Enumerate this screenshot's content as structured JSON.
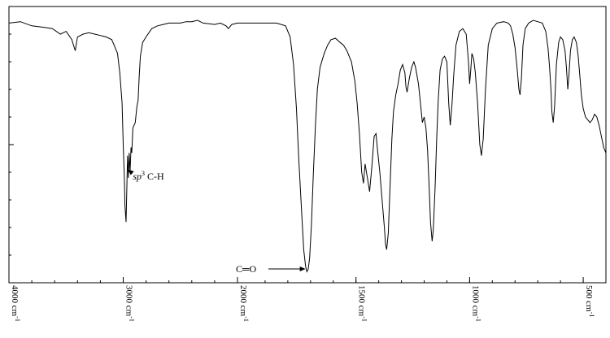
{
  "chart_data": {
    "type": "line",
    "xlim": [
      4000,
      400
    ],
    "ylim": [
      0,
      100
    ],
    "grid": false,
    "legend": "none",
    "line_color": "#000000",
    "x_ticks": [
      {
        "value": 4000,
        "label": "4000 cm",
        "sup": "-1"
      },
      {
        "value": 3000,
        "label": "3000 cm",
        "sup": "-1"
      },
      {
        "value": 2000,
        "label": "2000 cm",
        "sup": "-1"
      },
      {
        "value": 1500,
        "label": "1500 cm",
        "sup": "-1"
      },
      {
        "value": 1000,
        "label": "1000 cm",
        "sup": "-1"
      },
      {
        "value": 500,
        "label": "500 cm",
        "sup": "-1"
      }
    ],
    "annotations": [
      {
        "italic": "sp",
        "sup": "3",
        "text": " C-H",
        "x": 2930,
        "y": 40
      },
      {
        "italic": "",
        "sup": "",
        "text": "C═O",
        "x": 1715,
        "y": 5
      }
    ],
    "points": [
      [
        4000,
        94
      ],
      [
        3900,
        94.5
      ],
      [
        3800,
        93
      ],
      [
        3700,
        92.5
      ],
      [
        3620,
        92
      ],
      [
        3550,
        90
      ],
      [
        3500,
        91
      ],
      [
        3450,
        88
      ],
      [
        3420,
        84
      ],
      [
        3400,
        89
      ],
      [
        3350,
        90
      ],
      [
        3300,
        90.5
      ],
      [
        3250,
        90
      ],
      [
        3200,
        89.5
      ],
      [
        3150,
        89
      ],
      [
        3100,
        88
      ],
      [
        3080,
        86
      ],
      [
        3050,
        83
      ],
      [
        3030,
        76
      ],
      [
        3010,
        65
      ],
      [
        3000,
        50
      ],
      [
        2990,
        38
      ],
      [
        2985,
        28
      ],
      [
        2975,
        22
      ],
      [
        2968,
        35
      ],
      [
        2962,
        46
      ],
      [
        2955,
        38
      ],
      [
        2948,
        47
      ],
      [
        2940,
        40
      ],
      [
        2932,
        49
      ],
      [
        2925,
        47
      ],
      [
        2915,
        56
      ],
      [
        2905,
        57
      ],
      [
        2895,
        58
      ],
      [
        2880,
        64
      ],
      [
        2870,
        66
      ],
      [
        2860,
        75
      ],
      [
        2850,
        82
      ],
      [
        2830,
        87
      ],
      [
        2800,
        89
      ],
      [
        2750,
        92
      ],
      [
        2700,
        93
      ],
      [
        2650,
        93.5
      ],
      [
        2600,
        94
      ],
      [
        2550,
        94
      ],
      [
        2500,
        94
      ],
      [
        2450,
        94.5
      ],
      [
        2400,
        94.5
      ],
      [
        2350,
        95
      ],
      [
        2300,
        94
      ],
      [
        2200,
        93.5
      ],
      [
        2150,
        94
      ],
      [
        2100,
        93
      ],
      [
        2080,
        92
      ],
      [
        2050,
        93.5
      ],
      [
        2000,
        94
      ],
      [
        1950,
        94
      ],
      [
        1900,
        94
      ],
      [
        1850,
        94
      ],
      [
        1810,
        93
      ],
      [
        1790,
        89
      ],
      [
        1775,
        79
      ],
      [
        1762,
        63
      ],
      [
        1752,
        45
      ],
      [
        1740,
        27
      ],
      [
        1730,
        12
      ],
      [
        1722,
        6
      ],
      [
        1716,
        4
      ],
      [
        1710,
        5
      ],
      [
        1704,
        9
      ],
      [
        1696,
        21
      ],
      [
        1688,
        39
      ],
      [
        1678,
        58
      ],
      [
        1670,
        70
      ],
      [
        1658,
        78
      ],
      [
        1640,
        83
      ],
      [
        1625,
        86
      ],
      [
        1610,
        88
      ],
      [
        1590,
        88.5
      ],
      [
        1570,
        87
      ],
      [
        1555,
        86
      ],
      [
        1540,
        84
      ],
      [
        1520,
        80
      ],
      [
        1505,
        73
      ],
      [
        1495,
        65
      ],
      [
        1485,
        54
      ],
      [
        1475,
        40
      ],
      [
        1467,
        36
      ],
      [
        1460,
        43
      ],
      [
        1450,
        38
      ],
      [
        1440,
        33
      ],
      [
        1430,
        42
      ],
      [
        1420,
        53
      ],
      [
        1412,
        54
      ],
      [
        1405,
        48
      ],
      [
        1395,
        40
      ],
      [
        1385,
        30
      ],
      [
        1375,
        20
      ],
      [
        1370,
        14
      ],
      [
        1365,
        12
      ],
      [
        1358,
        18
      ],
      [
        1350,
        35
      ],
      [
        1342,
        52
      ],
      [
        1335,
        62
      ],
      [
        1325,
        68
      ],
      [
        1315,
        72
      ],
      [
        1305,
        77
      ],
      [
        1295,
        79
      ],
      [
        1285,
        76
      ],
      [
        1280,
        71
      ],
      [
        1275,
        69
      ],
      [
        1265,
        74
      ],
      [
        1255,
        78
      ],
      [
        1245,
        80
      ],
      [
        1238,
        78
      ],
      [
        1225,
        72
      ],
      [
        1215,
        64
      ],
      [
        1208,
        58
      ],
      [
        1200,
        60
      ],
      [
        1192,
        56
      ],
      [
        1185,
        48
      ],
      [
        1178,
        35
      ],
      [
        1172,
        22
      ],
      [
        1165,
        15
      ],
      [
        1160,
        19
      ],
      [
        1152,
        34
      ],
      [
        1145,
        52
      ],
      [
        1138,
        66
      ],
      [
        1130,
        77
      ],
      [
        1120,
        81
      ],
      [
        1110,
        82
      ],
      [
        1100,
        80
      ],
      [
        1092,
        65
      ],
      [
        1085,
        57
      ],
      [
        1078,
        64
      ],
      [
        1070,
        75
      ],
      [
        1060,
        86
      ],
      [
        1045,
        91
      ],
      [
        1030,
        92
      ],
      [
        1015,
        90
      ],
      [
        1005,
        80
      ],
      [
        1000,
        72
      ],
      [
        995,
        77
      ],
      [
        990,
        83
      ],
      [
        982,
        81
      ],
      [
        975,
        76
      ],
      [
        965,
        65
      ],
      [
        955,
        50
      ],
      [
        948,
        46
      ],
      [
        940,
        52
      ],
      [
        930,
        70
      ],
      [
        918,
        86
      ],
      [
        900,
        92
      ],
      [
        880,
        94
      ],
      [
        850,
        94.5
      ],
      [
        830,
        94
      ],
      [
        820,
        93
      ],
      [
        810,
        90
      ],
      [
        800,
        85
      ],
      [
        790,
        77
      ],
      [
        783,
        70
      ],
      [
        778,
        68
      ],
      [
        772,
        74
      ],
      [
        765,
        86
      ],
      [
        755,
        92
      ],
      [
        740,
        94
      ],
      [
        720,
        95
      ],
      [
        700,
        94.5
      ],
      [
        680,
        94
      ],
      [
        665,
        91
      ],
      [
        655,
        85
      ],
      [
        648,
        78
      ],
      [
        642,
        70
      ],
      [
        638,
        62
      ],
      [
        632,
        58
      ],
      [
        626,
        64
      ],
      [
        618,
        79
      ],
      [
        608,
        87
      ],
      [
        600,
        89
      ],
      [
        590,
        88
      ],
      [
        580,
        84
      ],
      [
        574,
        78
      ],
      [
        568,
        70
      ],
      [
        563,
        75
      ],
      [
        556,
        84
      ],
      [
        548,
        88
      ],
      [
        540,
        89
      ],
      [
        530,
        87
      ],
      [
        522,
        82
      ],
      [
        515,
        75
      ],
      [
        508,
        68
      ],
      [
        500,
        63
      ],
      [
        490,
        60
      ],
      [
        480,
        59
      ],
      [
        470,
        58
      ],
      [
        460,
        59
      ],
      [
        450,
        61
      ],
      [
        440,
        60
      ],
      [
        430,
        57
      ],
      [
        420,
        53
      ],
      [
        410,
        49
      ],
      [
        400,
        47
      ]
    ]
  }
}
